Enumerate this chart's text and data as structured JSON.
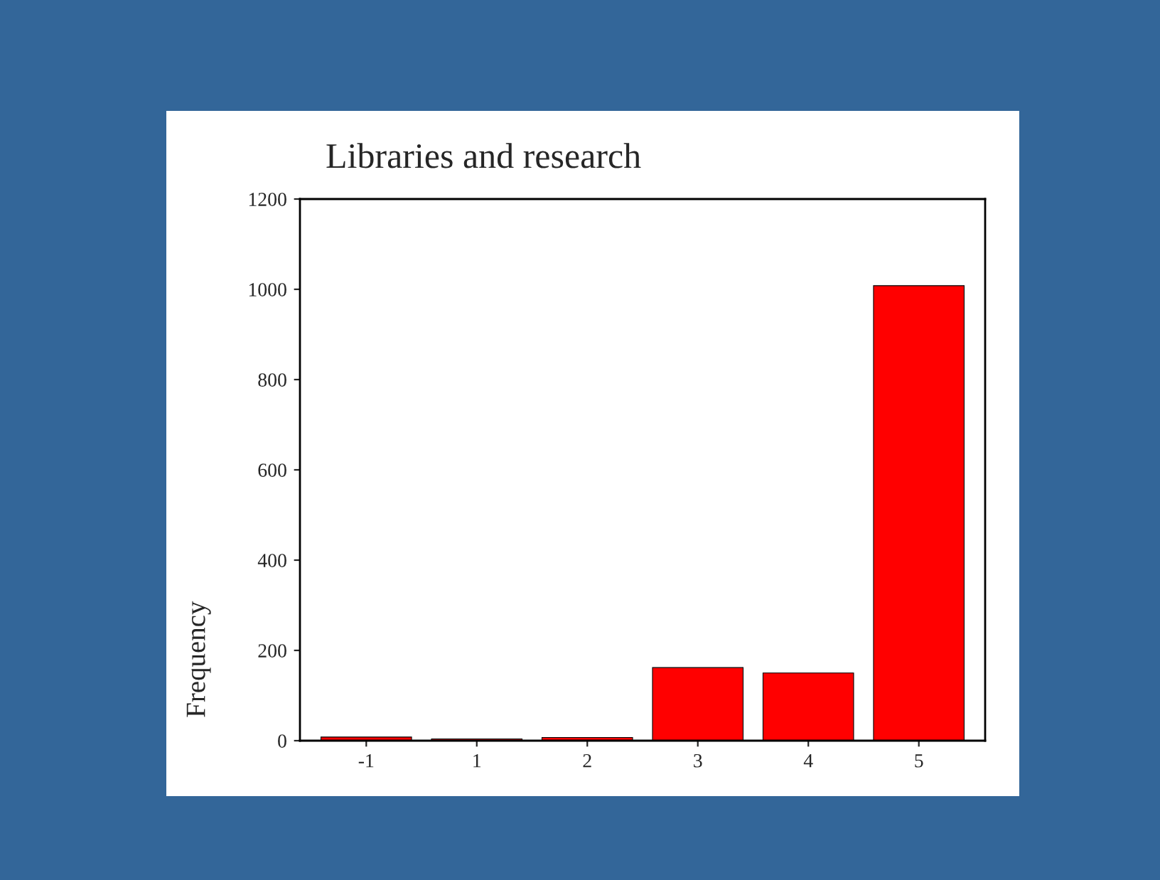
{
  "chart_data": {
    "type": "bar",
    "title": "Libraries and research",
    "ylabel": "Frequency",
    "categories": [
      "-1",
      "1",
      "2",
      "3",
      "4",
      "5"
    ],
    "values": [
      8,
      4,
      7,
      162,
      150,
      1008
    ],
    "color": "#ff0000",
    "ylim": [
      0,
      1200
    ],
    "yticks": [
      0,
      200,
      400,
      600,
      800,
      1000,
      1200
    ],
    "grid": false
  }
}
